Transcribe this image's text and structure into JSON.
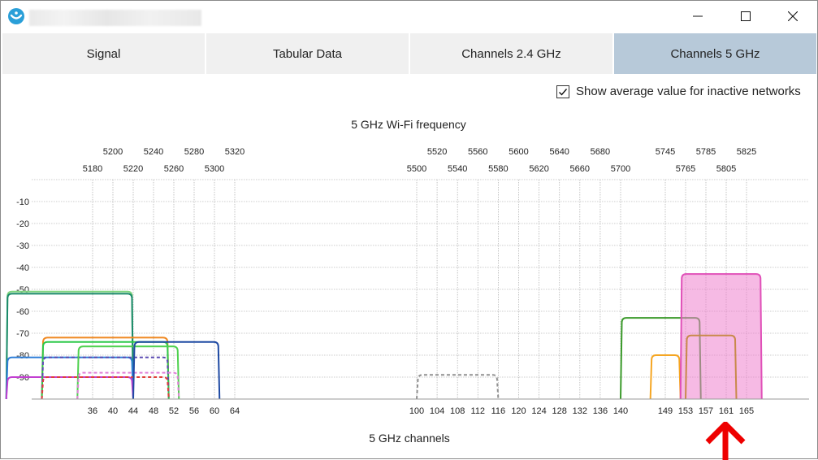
{
  "window": {
    "minimize_label": "",
    "maximize_label": "",
    "close_label": ""
  },
  "tabs": [
    {
      "label": "Signal",
      "active": false
    },
    {
      "label": "Tabular Data",
      "active": false
    },
    {
      "label": "Channels 2.4 GHz",
      "active": false
    },
    {
      "label": "Channels 5 GHz",
      "active": true
    }
  ],
  "options": {
    "show_average_label": "Show average value for inactive networks",
    "show_average_checked": true
  },
  "chart_data": {
    "type": "line",
    "title": "5 GHz Wi-Fi frequency",
    "xlabel": "5 GHz channels",
    "ylabel": "",
    "ylim": [
      -100,
      0
    ],
    "yticks": [
      -10,
      -20,
      -30,
      -40,
      -50,
      -60,
      -70,
      -80,
      -90
    ],
    "grid": true,
    "channel_labels": [
      {
        "ch": 36,
        "label": "36"
      },
      {
        "ch": 40,
        "label": "40"
      },
      {
        "ch": 44,
        "label": "44"
      },
      {
        "ch": 48,
        "label": "48"
      },
      {
        "ch": 52,
        "label": "52"
      },
      {
        "ch": 56,
        "label": "56"
      },
      {
        "ch": 60,
        "label": "60"
      },
      {
        "ch": 64,
        "label": "64"
      },
      {
        "ch": 100,
        "label": "100"
      },
      {
        "ch": 104,
        "label": "104"
      },
      {
        "ch": 108,
        "label": "108"
      },
      {
        "ch": 112,
        "label": "112"
      },
      {
        "ch": 116,
        "label": "116"
      },
      {
        "ch": 120,
        "label": "120"
      },
      {
        "ch": 124,
        "label": "124"
      },
      {
        "ch": 128,
        "label": "128"
      },
      {
        "ch": 132,
        "label": "132"
      },
      {
        "ch": 136,
        "label": "136"
      },
      {
        "ch": 140,
        "label": "140"
      },
      {
        "ch": 149,
        "label": "149"
      },
      {
        "ch": 153,
        "label": "153"
      },
      {
        "ch": 157,
        "label": "157"
      },
      {
        "ch": 161,
        "label": "161"
      },
      {
        "ch": 165,
        "label": "165"
      }
    ],
    "freq_top": [
      {
        "ch": 40,
        "label": "5200"
      },
      {
        "ch": 48,
        "label": "5240"
      },
      {
        "ch": 56,
        "label": "5280"
      },
      {
        "ch": 64,
        "label": "5320"
      },
      {
        "ch": 104,
        "label": "5520"
      },
      {
        "ch": 112,
        "label": "5560"
      },
      {
        "ch": 120,
        "label": "5600"
      },
      {
        "ch": 128,
        "label": "5640"
      },
      {
        "ch": 136,
        "label": "5680"
      },
      {
        "ch": 149,
        "label": "5745"
      },
      {
        "ch": 157,
        "label": "5785"
      },
      {
        "ch": 165,
        "label": "5825"
      }
    ],
    "freq_bottom": [
      {
        "ch": 36,
        "label": "5180"
      },
      {
        "ch": 44,
        "label": "5220"
      },
      {
        "ch": 52,
        "label": "5260"
      },
      {
        "ch": 60,
        "label": "5300"
      },
      {
        "ch": 100,
        "label": "5500"
      },
      {
        "ch": 108,
        "label": "5540"
      },
      {
        "ch": 116,
        "label": "5580"
      },
      {
        "ch": 124,
        "label": "5620"
      },
      {
        "ch": 132,
        "label": "5660"
      },
      {
        "ch": 140,
        "label": "5700"
      },
      {
        "ch": 153,
        "label": "5765"
      },
      {
        "ch": 161,
        "label": "5805"
      }
    ],
    "series": [
      {
        "from": 19,
        "to": 44,
        "dbm": -51,
        "color": "#7ed47e",
        "dashed": false,
        "fill": false
      },
      {
        "from": 19,
        "to": 44,
        "dbm": -52,
        "color": "#1a8a6a",
        "dashed": false,
        "fill": false
      },
      {
        "from": 19,
        "to": 44,
        "dbm": -81,
        "color": "#2f7fd8",
        "dashed": false,
        "fill": false
      },
      {
        "from": 19,
        "to": 44,
        "dbm": -90,
        "color": "#c23fd1",
        "dashed": false,
        "fill": false
      },
      {
        "from": 26,
        "to": 51,
        "dbm": -72,
        "color": "#f08a24",
        "dashed": false,
        "fill": false
      },
      {
        "from": 26,
        "to": 51,
        "dbm": -74,
        "color": "#2ec94a",
        "dashed": false,
        "fill": false
      },
      {
        "from": 26,
        "to": 51,
        "dbm": -81,
        "color": "#5a4ab2",
        "dashed": true,
        "fill": false
      },
      {
        "from": 26,
        "to": 51,
        "dbm": -90,
        "color": "#e0403a",
        "dashed": true,
        "fill": false
      },
      {
        "from": 33,
        "to": 53,
        "dbm": -76,
        "color": "#4fd14f",
        "dashed": false,
        "fill": false
      },
      {
        "from": 33,
        "to": 53,
        "dbm": -88,
        "color": "#e080d8",
        "dashed": true,
        "fill": false
      },
      {
        "from": 44,
        "to": 61,
        "dbm": -74,
        "color": "#1f4aa3",
        "dashed": false,
        "fill": false
      },
      {
        "from": 100,
        "to": 116,
        "dbm": -89,
        "color": "#909090",
        "dashed": true,
        "fill": false
      },
      {
        "from": 140,
        "to": 156,
        "dbm": -63,
        "color": "#3a9a2a",
        "dashed": false,
        "fill": false
      },
      {
        "from": 146,
        "to": 152,
        "dbm": -80,
        "color": "#f5a623",
        "dashed": false,
        "fill": false
      },
      {
        "from": 152,
        "to": 168,
        "dbm": -43,
        "color": "#e050b8",
        "dashed": false,
        "fill": true
      },
      {
        "from": 153,
        "to": 163,
        "dbm": -71,
        "color": "#c8894a",
        "dashed": false,
        "fill": false
      }
    ]
  }
}
